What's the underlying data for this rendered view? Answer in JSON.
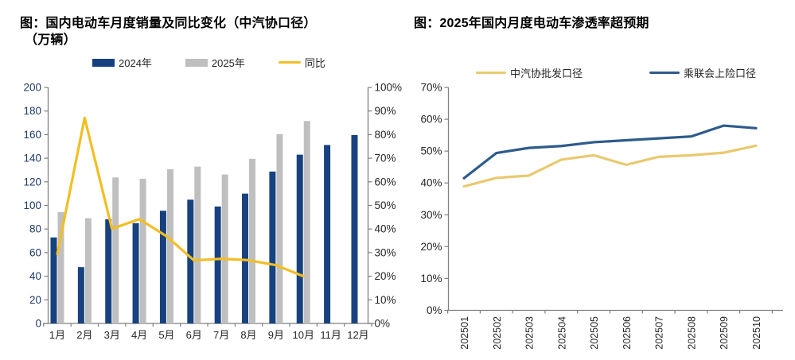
{
  "page": {
    "background": "#ffffff"
  },
  "chart_data": [
    {
      "id": "sales",
      "type": "bar+line",
      "title": "图：国内电动车月度销量及同比变化（中汽协口径）",
      "title_line2": "（万辆）",
      "categories": [
        "1月",
        "2月",
        "3月",
        "4月",
        "5月",
        "6月",
        "7月",
        "8月",
        "9月",
        "10月",
        "11月",
        "12月"
      ],
      "series": [
        {
          "name": "2024年",
          "type": "bar",
          "axis": "left",
          "color": "#17427F",
          "values": [
            72.9,
            47.7,
            88.3,
            85.0,
            95.5,
            104.9,
            99.1,
            110.0,
            128.7,
            143.0,
            151.2,
            159.6
          ]
        },
        {
          "name": "2025年",
          "type": "bar",
          "axis": "left",
          "color": "#BFBFBF",
          "values": [
            94.4,
            89.2,
            123.7,
            122.6,
            130.7,
            132.9,
            126.2,
            139.5,
            160.4,
            171.5,
            null,
            null
          ]
        },
        {
          "name": "同比",
          "type": "line",
          "axis": "right",
          "color": "#F2BE24",
          "values": [
            29.4,
            87.1,
            40.1,
            44.2,
            36.9,
            26.7,
            27.4,
            26.8,
            24.7,
            20.0,
            null,
            null
          ]
        }
      ],
      "left_axis": {
        "min": 0,
        "max": 200,
        "step": 20,
        "label_color": "#1F3864",
        "tick_labels": [
          "200",
          "180",
          "160",
          "140",
          "120",
          "100",
          "80",
          "60",
          "40",
          "20",
          "0"
        ]
      },
      "right_axis": {
        "min": 0,
        "max": 100,
        "step": 10,
        "label_color": "#262626",
        "tick_labels": [
          "100%",
          "90%",
          "80%",
          "70%",
          "60%",
          "50%",
          "40%",
          "30%",
          "20%",
          "10%",
          "0%"
        ]
      },
      "grid": false,
      "legend_position": "top"
    },
    {
      "id": "penetration",
      "type": "line",
      "title": "图：2025年国内月度电动车渗透率超预期",
      "categories": [
        "202501",
        "202502",
        "202503",
        "202504",
        "202505",
        "202506",
        "202507",
        "202508",
        "202509",
        "202510"
      ],
      "series": [
        {
          "name": "中汽协批发口径",
          "color": "#E9C970",
          "values": [
            38.9,
            41.6,
            42.3,
            47.3,
            48.7,
            45.7,
            48.2,
            48.7,
            49.5,
            51.7
          ]
        },
        {
          "name": "乘联会上险口径",
          "color": "#2E5B8C",
          "values": [
            41.5,
            49.4,
            51.0,
            51.6,
            52.8,
            53.4,
            54.0,
            54.6,
            58.0,
            57.2
          ]
        }
      ],
      "y_axis": {
        "min": 0,
        "max": 70,
        "step": 10,
        "label_color": "#262626",
        "tick_labels": [
          "70%",
          "60%",
          "50%",
          "40%",
          "30%",
          "20%",
          "10%",
          "0%"
        ]
      },
      "grid": false,
      "legend_position": "top"
    }
  ]
}
